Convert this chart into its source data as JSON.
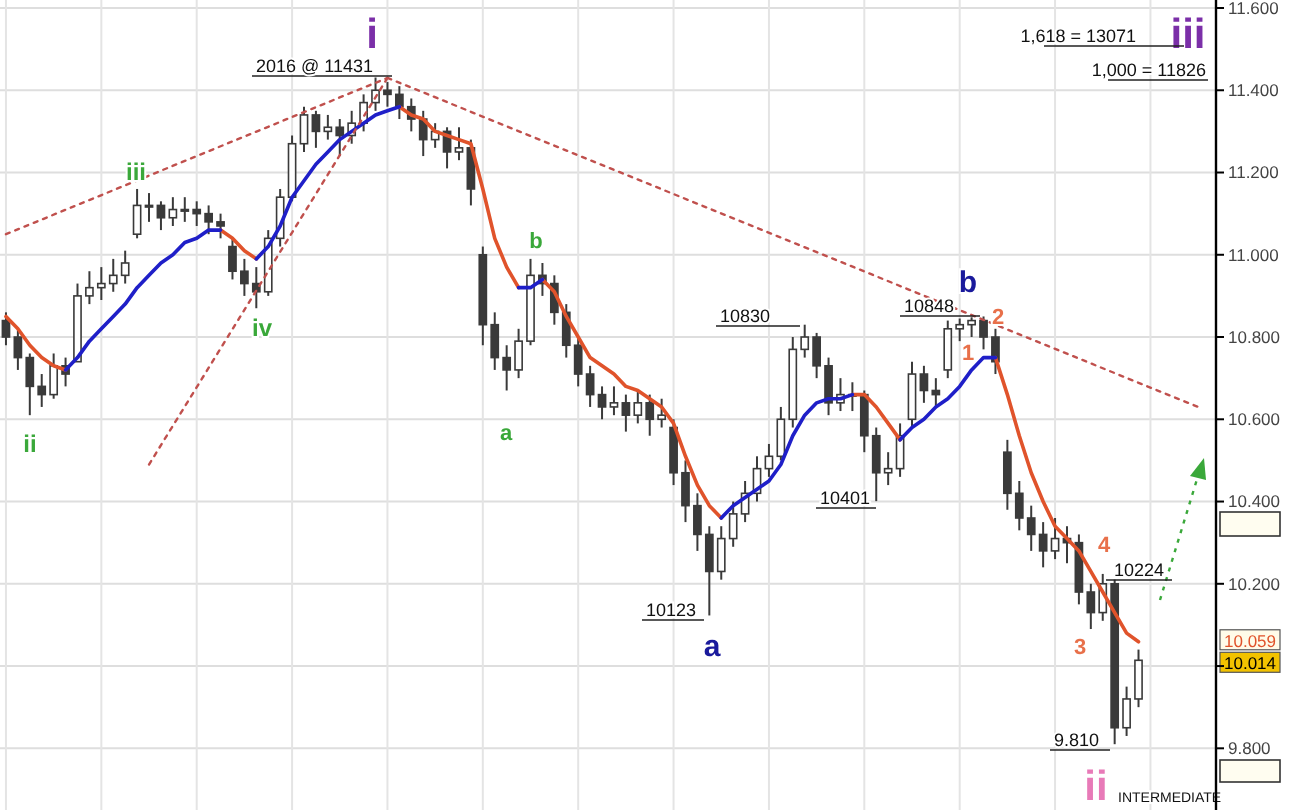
{
  "chart_data": {
    "type": "candlestick",
    "categories": [
      null,
      null,
      null,
      null,
      null,
      null,
      null,
      null,
      null,
      null,
      null,
      null,
      null,
      null,
      null,
      null,
      null,
      null,
      null,
      null,
      null,
      null,
      null,
      null,
      null,
      null,
      null,
      null,
      null,
      null,
      null,
      null,
      null,
      null,
      null,
      null,
      null,
      null,
      null,
      null,
      null,
      null,
      null,
      null,
      null,
      null,
      null,
      null,
      null,
      null,
      null,
      null,
      null,
      null,
      null,
      null,
      null,
      null,
      null,
      null,
      null,
      null,
      null,
      null,
      null,
      null,
      null,
      null,
      null,
      null,
      null,
      null,
      null,
      null,
      null,
      null,
      null,
      null,
      null,
      null,
      null,
      null,
      null,
      null,
      null,
      null,
      null,
      null,
      null,
      null,
      null,
      null,
      null,
      null,
      null,
      null,
      null,
      null,
      null,
      null,
      null,
      null
    ],
    "ohlc": [
      [
        10.84,
        10.86,
        10.78,
        10.8
      ],
      [
        10.8,
        10.82,
        10.72,
        10.75
      ],
      [
        10.75,
        10.76,
        10.61,
        10.68
      ],
      [
        10.68,
        10.71,
        10.63,
        10.66
      ],
      [
        10.66,
        10.76,
        10.65,
        10.73
      ],
      [
        10.73,
        10.75,
        10.68,
        10.71
      ],
      [
        10.74,
        10.93,
        10.74,
        10.9
      ],
      [
        10.9,
        10.96,
        10.88,
        10.92
      ],
      [
        10.92,
        10.97,
        10.89,
        10.93
      ],
      [
        10.93,
        10.99,
        10.91,
        10.95
      ],
      [
        10.95,
        11.01,
        10.93,
        10.98
      ],
      [
        11.05,
        11.16,
        11.04,
        11.12
      ],
      [
        11.12,
        11.15,
        11.08,
        11.12
      ],
      [
        11.12,
        11.13,
        11.06,
        11.09
      ],
      [
        11.09,
        11.14,
        11.07,
        11.11
      ],
      [
        11.11,
        11.14,
        11.08,
        11.11
      ],
      [
        11.11,
        11.13,
        11.07,
        11.1
      ],
      [
        11.1,
        11.12,
        11.05,
        11.08
      ],
      [
        11.08,
        11.1,
        11.04,
        11.07
      ],
      [
        11.02,
        11.04,
        10.94,
        10.96
      ],
      [
        10.96,
        10.99,
        10.9,
        10.93
      ],
      [
        10.93,
        10.97,
        10.87,
        10.91
      ],
      [
        10.91,
        11.06,
        10.9,
        11.04
      ],
      [
        11.04,
        11.16,
        11.02,
        11.14
      ],
      [
        11.14,
        11.29,
        11.13,
        11.27
      ],
      [
        11.27,
        11.36,
        11.25,
        11.34
      ],
      [
        11.34,
        11.35,
        11.26,
        11.3
      ],
      [
        11.3,
        11.34,
        11.28,
        11.31
      ],
      [
        11.31,
        11.33,
        11.24,
        11.29
      ],
      [
        11.29,
        11.35,
        11.27,
        11.32
      ],
      [
        11.32,
        11.39,
        11.3,
        11.37
      ],
      [
        11.37,
        11.431,
        11.35,
        11.4
      ],
      [
        11.4,
        11.42,
        11.36,
        11.39
      ],
      [
        11.39,
        11.41,
        11.33,
        11.36
      ],
      [
        11.36,
        11.38,
        11.3,
        11.33
      ],
      [
        11.33,
        11.35,
        11.24,
        11.28
      ],
      [
        11.28,
        11.32,
        11.26,
        11.3
      ],
      [
        11.3,
        11.31,
        11.21,
        11.25
      ],
      [
        11.25,
        11.31,
        11.23,
        11.26
      ],
      [
        11.26,
        11.28,
        11.12,
        11.16
      ],
      [
        11.0,
        11.02,
        10.78,
        10.83
      ],
      [
        10.83,
        10.86,
        10.72,
        10.75
      ],
      [
        10.75,
        10.78,
        10.67,
        10.72
      ],
      [
        10.72,
        10.82,
        10.7,
        10.79
      ],
      [
        10.79,
        10.99,
        10.78,
        10.95
      ],
      [
        10.95,
        10.98,
        10.9,
        10.93
      ],
      [
        10.93,
        10.95,
        10.83,
        10.86
      ],
      [
        10.86,
        10.88,
        10.75,
        10.78
      ],
      [
        10.78,
        10.8,
        10.68,
        10.71
      ],
      [
        10.71,
        10.73,
        10.63,
        10.66
      ],
      [
        10.66,
        10.68,
        10.6,
        10.63
      ],
      [
        10.63,
        10.68,
        10.61,
        10.64
      ],
      [
        10.64,
        10.66,
        10.57,
        10.61
      ],
      [
        10.61,
        10.67,
        10.59,
        10.64
      ],
      [
        10.64,
        10.66,
        10.56,
        10.6
      ],
      [
        10.6,
        10.65,
        10.58,
        10.61
      ],
      [
        10.58,
        10.6,
        10.44,
        10.47
      ],
      [
        10.47,
        10.5,
        10.35,
        10.39
      ],
      [
        10.39,
        10.42,
        10.28,
        10.32
      ],
      [
        10.32,
        10.34,
        10.123,
        10.23
      ],
      [
        10.23,
        10.34,
        10.21,
        10.31
      ],
      [
        10.31,
        10.4,
        10.29,
        10.37
      ],
      [
        10.37,
        10.45,
        10.35,
        10.42
      ],
      [
        10.42,
        10.51,
        10.4,
        10.48
      ],
      [
        10.48,
        10.54,
        10.46,
        10.51
      ],
      [
        10.51,
        10.63,
        10.5,
        10.6
      ],
      [
        10.6,
        10.8,
        10.58,
        10.77
      ],
      [
        10.77,
        10.83,
        10.75,
        10.8
      ],
      [
        10.8,
        10.81,
        10.7,
        10.73
      ],
      [
        10.73,
        10.75,
        10.61,
        10.64
      ],
      [
        10.64,
        10.7,
        10.62,
        10.66
      ],
      [
        10.66,
        10.69,
        10.62,
        10.66
      ],
      [
        10.66,
        10.67,
        10.52,
        10.56
      ],
      [
        10.56,
        10.58,
        10.401,
        10.47
      ],
      [
        10.47,
        10.52,
        10.44,
        10.48
      ],
      [
        10.48,
        10.59,
        10.46,
        10.56
      ],
      [
        10.6,
        10.74,
        10.58,
        10.71
      ],
      [
        10.71,
        10.73,
        10.64,
        10.67
      ],
      [
        10.67,
        10.7,
        10.63,
        10.66
      ],
      [
        10.72,
        10.84,
        10.7,
        10.82
      ],
      [
        10.82,
        10.845,
        10.79,
        10.83
      ],
      [
        10.83,
        10.848,
        10.8,
        10.84
      ],
      [
        10.84,
        10.85,
        10.77,
        10.8
      ],
      [
        10.8,
        10.82,
        10.71,
        10.74
      ],
      [
        10.52,
        10.55,
        10.38,
        10.42
      ],
      [
        10.42,
        10.45,
        10.33,
        10.36
      ],
      [
        10.36,
        10.39,
        10.28,
        10.32
      ],
      [
        10.32,
        10.35,
        10.24,
        10.28
      ],
      [
        10.28,
        10.36,
        10.26,
        10.31
      ],
      [
        10.31,
        10.34,
        10.25,
        10.3
      ],
      [
        10.3,
        10.32,
        10.15,
        10.18
      ],
      [
        10.18,
        10.2,
        10.09,
        10.13
      ],
      [
        10.13,
        10.224,
        10.11,
        10.2
      ],
      [
        10.2,
        10.21,
        9.81,
        9.85
      ],
      [
        9.85,
        9.95,
        9.83,
        9.92
      ],
      [
        9.92,
        10.04,
        9.9,
        10.014
      ],
      null,
      null,
      null,
      null,
      null,
      null
    ],
    "series": [
      {
        "type": "line",
        "color": "#e0532b",
        "values": [
          10.85,
          10.82,
          10.78,
          10.75,
          10.73,
          10.72,
          null,
          null,
          null,
          null,
          null,
          null,
          null,
          null,
          null,
          null,
          null,
          null,
          11.06,
          11.04,
          11.01,
          10.99,
          null,
          null,
          null,
          null,
          null,
          null,
          null,
          null,
          null,
          null,
          null,
          11.36,
          11.34,
          11.33,
          11.3,
          11.29,
          11.28,
          11.27,
          11.16,
          11.04,
          10.97,
          10.92,
          null,
          10.94,
          10.91,
          10.85,
          10.8,
          10.75,
          10.73,
          10.71,
          10.68,
          10.67,
          10.65,
          10.63,
          10.59,
          10.51,
          10.44,
          10.39,
          10.36,
          null,
          null,
          null,
          null,
          null,
          null,
          null,
          null,
          null,
          null,
          10.66,
          10.66,
          10.63,
          10.59,
          10.55,
          null,
          null,
          null,
          null,
          null,
          null,
          null,
          10.75,
          10.66,
          10.56,
          10.47,
          10.4,
          10.34,
          10.31,
          10.28,
          10.23,
          10.18,
          10.13,
          10.08,
          10.059,
          null,
          null,
          null,
          null,
          null,
          null
        ]
      },
      {
        "type": "line",
        "color": "#1f1fc8",
        "values": [
          null,
          null,
          null,
          null,
          null,
          10.72,
          10.75,
          10.79,
          10.82,
          10.85,
          10.88,
          10.92,
          10.95,
          10.98,
          11.0,
          11.03,
          11.04,
          11.06,
          11.06,
          null,
          null,
          10.99,
          11.02,
          11.07,
          11.14,
          11.18,
          11.22,
          11.25,
          11.28,
          11.3,
          11.32,
          11.34,
          11.35,
          11.36,
          null,
          null,
          null,
          null,
          null,
          null,
          null,
          null,
          null,
          10.92,
          10.92,
          10.94,
          null,
          null,
          null,
          null,
          null,
          null,
          null,
          null,
          null,
          null,
          null,
          null,
          null,
          null,
          10.36,
          10.39,
          10.41,
          10.43,
          10.45,
          10.49,
          10.56,
          10.61,
          10.64,
          10.65,
          10.65,
          10.66,
          null,
          null,
          null,
          10.55,
          10.58,
          10.6,
          10.63,
          10.65,
          10.68,
          10.72,
          10.75,
          10.75,
          null,
          null,
          null,
          null,
          null,
          null,
          null,
          null,
          null,
          null,
          null,
          null,
          null,
          null,
          null,
          null,
          null,
          null
        ]
      },
      {
        "type": "line",
        "color": "#c0504d",
        "line_style": "dotted",
        "values": [
          11.05,
          null,
          null,
          null,
          null,
          null,
          null,
          null,
          null,
          null,
          null,
          null,
          null,
          null,
          null,
          null,
          null,
          null,
          null,
          null,
          null,
          null,
          null,
          null,
          null,
          null,
          null,
          null,
          null,
          null,
          null,
          null,
          11.43,
          null,
          null,
          null,
          null,
          null,
          null,
          null,
          null,
          null,
          null,
          null,
          null,
          null,
          null,
          null,
          null,
          null,
          null,
          null,
          null,
          null,
          null,
          null,
          null,
          null,
          null,
          null,
          null,
          null,
          null,
          null,
          null,
          null,
          null,
          null,
          null,
          null,
          null,
          null,
          null,
          null,
          null,
          null,
          null,
          null,
          null,
          null,
          null,
          null,
          null,
          null,
          null,
          null,
          null,
          null,
          null,
          null,
          null,
          null,
          null,
          null,
          null,
          null,
          null,
          null,
          null,
          null,
          null,
          null
        ]
      },
      {
        "type": "line",
        "color": "#c0504d",
        "line_style": "dotted",
        "values": [
          null,
          null,
          null,
          null,
          null,
          null,
          null,
          null,
          null,
          null,
          null,
          null,
          null,
          null,
          null,
          null,
          null,
          null,
          null,
          null,
          null,
          null,
          null,
          null,
          null,
          null,
          null,
          null,
          null,
          null,
          null,
          null,
          11.43,
          null,
          null,
          null,
          null,
          null,
          null,
          null,
          null,
          null,
          null,
          null,
          null,
          null,
          null,
          null,
          null,
          null,
          null,
          null,
          null,
          null,
          null,
          null,
          null,
          null,
          null,
          null,
          null,
          null,
          null,
          null,
          null,
          null,
          null,
          null,
          null,
          null,
          null,
          null,
          null,
          null,
          null,
          null,
          null,
          null,
          null,
          null,
          null,
          null,
          null,
          null,
          null,
          null,
          null,
          null,
          null,
          null,
          null,
          null,
          null,
          null,
          null,
          null,
          null,
          null,
          null,
          null,
          10.63,
          null
        ]
      },
      {
        "type": "line",
        "color": "#c0504d",
        "line_style": "dotted",
        "values": [
          null,
          null,
          null,
          null,
          null,
          null,
          null,
          null,
          null,
          null,
          null,
          null,
          10.49,
          null,
          null,
          null,
          null,
          null,
          null,
          null,
          null,
          null,
          null,
          null,
          null,
          null,
          null,
          null,
          null,
          null,
          null,
          null,
          11.43,
          null,
          null,
          null,
          null,
          null,
          null,
          null,
          null,
          null,
          null,
          null,
          null,
          null,
          null,
          null,
          null,
          null,
          null,
          null,
          null,
          null,
          null,
          null,
          null,
          null,
          null,
          null,
          null,
          null,
          null,
          null,
          null,
          null,
          null,
          null,
          null,
          null,
          null,
          null,
          null,
          null,
          null,
          null,
          null,
          null,
          null,
          null,
          null,
          null,
          null,
          null,
          null,
          null,
          null,
          null,
          null,
          null,
          null,
          null,
          null,
          null,
          null,
          null,
          null,
          null,
          null,
          null,
          null,
          null
        ]
      }
    ],
    "ylim": [
      9.65,
      11.6
    ],
    "yticks": [
      {
        "value": 9.8,
        "label": "9.800"
      },
      {
        "value": 10,
        "label": null
      },
      {
        "value": 10.2,
        "label": "10.200"
      },
      {
        "value": 10.4,
        "label": "10.400"
      },
      {
        "value": 10.6,
        "label": "10.600"
      },
      {
        "value": 10.8,
        "label": "10.800"
      },
      {
        "value": 11,
        "label": "11.000"
      },
      {
        "value": 11.2,
        "label": "11.200"
      },
      {
        "value": 11.4,
        "label": "11.400"
      },
      {
        "value": 11.6,
        "label": "11.600"
      }
    ],
    "grid": true,
    "annotations": [
      "2016 @ 11431",
      "10830",
      "10123",
      "10401",
      "10848",
      "10224",
      "9.810",
      "i",
      "ii",
      "iii",
      "iv",
      "a",
      "b",
      "a",
      "b",
      "1",
      "2",
      "3",
      "4",
      "ii",
      "iii",
      "1,618 = 13071",
      "1,000 = 11826",
      "INTERMEDIATE",
      {
        "text": "10.059",
        "y": 10.059
      },
      {
        "text": "10.014",
        "y": 10.014
      }
    ]
  }
}
